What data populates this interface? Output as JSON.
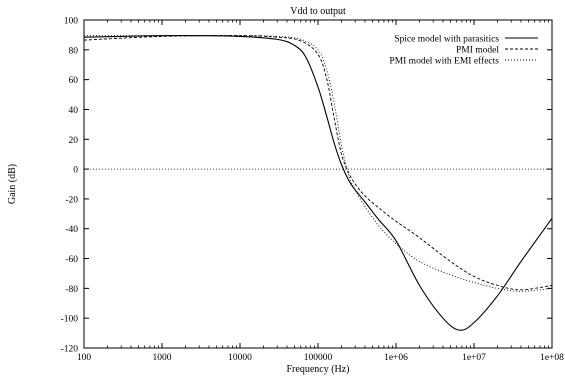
{
  "chart_data": {
    "type": "line",
    "title": "Vdd to output",
    "xlabel": "Frequency (Hz)",
    "ylabel": "Gain (dB)",
    "x_scale": "log",
    "xlim": [
      100,
      100000000
    ],
    "ylim": [
      -120,
      100
    ],
    "x_ticks": [
      100,
      1000,
      10000,
      100000,
      1000000,
      10000000,
      100000000
    ],
    "x_tick_labels": [
      "100",
      "1000",
      "10000",
      "100000",
      "1e+06",
      "1e+07",
      "1e+08"
    ],
    "y_ticks": [
      -120,
      -100,
      -80,
      -60,
      -40,
      -20,
      0,
      20,
      40,
      60,
      80,
      100
    ],
    "y_tick_labels": [
      "-120",
      "-100",
      "-80",
      "-60",
      "-40",
      "-20",
      "0",
      "20",
      "40",
      "60",
      "80",
      "100"
    ],
    "grid": false,
    "zero_line": {
      "y": 0,
      "style": "dotted"
    },
    "legend_position": "top-right",
    "series": [
      {
        "name": "Spice model with parasitics",
        "dash": "solid",
        "x": [
          100,
          300,
          1000,
          3000,
          10000,
          30000,
          50000,
          70000,
          100000,
          130000,
          160000,
          200000,
          250000,
          300000,
          400000,
          600000,
          1000000,
          2000000,
          4000000,
          6500000,
          10000000,
          20000000,
          40000000,
          100000000
        ],
        "y": [
          88.5,
          89,
          89.5,
          89.5,
          89,
          87,
          83,
          75,
          55,
          35,
          18,
          3,
          -8,
          -14,
          -22,
          -34,
          -48,
          -78,
          -100,
          -108,
          -103,
          -85,
          -62,
          -33
        ]
      },
      {
        "name": "PMI model",
        "dash": "dashed",
        "x": [
          100,
          1000,
          10000,
          30000,
          60000,
          100000,
          130000,
          160000,
          200000,
          250000,
          300000,
          400000,
          600000,
          1000000,
          2000000,
          5000000,
          10000000,
          20000000,
          40000000,
          100000000
        ],
        "y": [
          86.5,
          89,
          89.5,
          88.5,
          86,
          77,
          60,
          35,
          10,
          -3,
          -10,
          -18,
          -26,
          -35,
          -46,
          -62,
          -72,
          -78,
          -81,
          -78
        ]
      },
      {
        "name": "PMI model with EMI effects",
        "dash": "dotted",
        "x": [
          100,
          1000,
          10000,
          30000,
          60000,
          100000,
          130000,
          160000,
          200000,
          250000,
          300000,
          400000,
          600000,
          1000000,
          2000000,
          5000000,
          10000000,
          20000000,
          40000000,
          100000000
        ],
        "y": [
          89.5,
          89.5,
          89.5,
          89,
          87,
          80,
          66,
          45,
          16,
          -5,
          -14,
          -25,
          -38,
          -50,
          -62,
          -71,
          -76,
          -80,
          -82,
          -80
        ]
      }
    ]
  }
}
